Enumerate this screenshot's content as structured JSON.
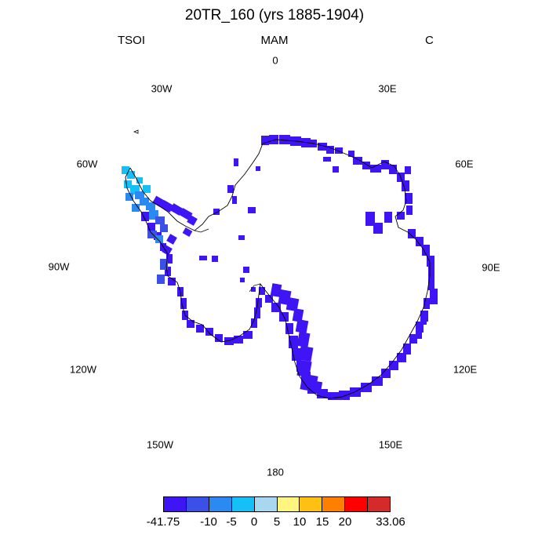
{
  "title": "20TR_160 (yrs 1885-1904)",
  "variable": "TSOI",
  "season": "MAM",
  "units": "C",
  "longitude_labels": [
    "0",
    "30E",
    "60E",
    "90E",
    "120E",
    "150E",
    "180",
    "150W",
    "120W",
    "90W",
    "60W",
    "30W"
  ],
  "colorbar": {
    "colors": [
      "#3f14f5",
      "#3a50e6",
      "#2a8af2",
      "#14c0f5",
      "#a8d8f0",
      "#fff57f",
      "#ffc014",
      "#ff7f00",
      "#ff0000",
      "#d42a2a"
    ],
    "tick_labels": [
      "-41.75",
      "-10",
      "-5",
      "0",
      "5",
      "10",
      "15",
      "20",
      "33.06"
    ]
  },
  "map": {
    "projection": "south-polar-stereographic",
    "region": "Antarctica",
    "field_color": "#3f14f5",
    "peninsula_colors": [
      "#14c0f5",
      "#2a8af2",
      "#3a50e6"
    ]
  }
}
